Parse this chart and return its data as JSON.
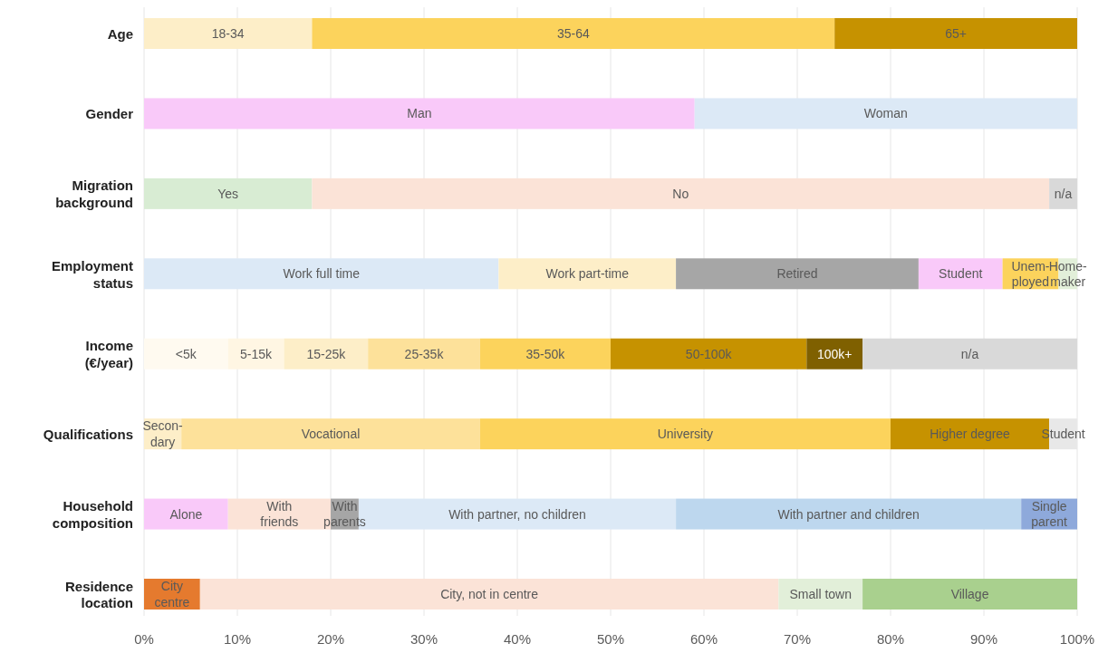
{
  "chart_data": {
    "type": "bar",
    "orientation": "horizontal",
    "stacked": true,
    "categories": [
      "Age",
      "Gender",
      "Migration\nbackground",
      "Employment\nstatus",
      "Income\n(€/year)",
      "Qualifications",
      "Household\ncomposition",
      "Residence\nlocation"
    ],
    "xlim": [
      0,
      100
    ],
    "xticks": [
      {
        "value": 0,
        "label": "0%"
      },
      {
        "value": 10,
        "label": "10%"
      },
      {
        "value": 20,
        "label": "20%"
      },
      {
        "value": 30,
        "label": "30%"
      },
      {
        "value": 40,
        "label": "40%"
      },
      {
        "value": 50,
        "label": "50%"
      },
      {
        "value": 60,
        "label": "60%"
      },
      {
        "value": 70,
        "label": "70%"
      },
      {
        "value": 80,
        "label": "80%"
      },
      {
        "value": 90,
        "label": "90%"
      },
      {
        "value": 100,
        "label": "100%"
      }
    ],
    "grid": "x",
    "series": [
      {
        "name": "18-34",
        "color": "#fdeec8",
        "values": [
          18,
          null,
          null,
          null,
          null,
          null,
          null,
          null
        ]
      },
      {
        "name": "35-64",
        "color": "#fcd35c",
        "values": [
          56,
          null,
          null,
          null,
          null,
          null,
          null,
          null
        ]
      },
      {
        "name": "65+",
        "color": "#c69200",
        "values": [
          26,
          null,
          null,
          null,
          null,
          null,
          null,
          null
        ]
      },
      {
        "name": "Man",
        "color": "#f9c9f9",
        "values": [
          null,
          59,
          null,
          null,
          null,
          null,
          null,
          null
        ]
      },
      {
        "name": "Woman",
        "color": "#dce9f6",
        "values": [
          null,
          41,
          null,
          null,
          null,
          null,
          null,
          null
        ]
      },
      {
        "name": "Yes",
        "color": "#d8ecd3",
        "values": [
          null,
          null,
          18,
          null,
          null,
          null,
          null,
          null
        ]
      },
      {
        "name": "No",
        "color": "#fbe3d7",
        "values": [
          null,
          null,
          79,
          null,
          null,
          null,
          null,
          null
        ]
      },
      {
        "name": "n/a",
        "color": "#d9d9d9",
        "values": [
          null,
          null,
          3,
          null,
          null,
          null,
          null,
          null
        ]
      },
      {
        "name": "Work full time",
        "color": "#dce9f6",
        "values": [
          null,
          null,
          null,
          38,
          null,
          null,
          null,
          null
        ]
      },
      {
        "name": "Work part-time",
        "color": "#fdeec8",
        "values": [
          null,
          null,
          null,
          19,
          null,
          null,
          null,
          null
        ]
      },
      {
        "name": "Retired",
        "color": "#a6a6a6",
        "values": [
          null,
          null,
          null,
          26,
          null,
          null,
          null,
          null
        ]
      },
      {
        "name": "Student",
        "color": "#f9c9f9",
        "values": [
          null,
          null,
          null,
          9,
          null,
          null,
          null,
          null
        ]
      },
      {
        "name": "Unem-\nployed",
        "color": "#fcd35c",
        "values": [
          null,
          null,
          null,
          6,
          null,
          null,
          null,
          null
        ]
      },
      {
        "name": "Home-\nmaker",
        "color": "#e2efd9",
        "values": [
          null,
          null,
          null,
          2,
          null,
          null,
          null,
          null
        ]
      },
      {
        "name": "<5k",
        "color": "#fffaf0",
        "values": [
          null,
          null,
          null,
          null,
          9,
          null,
          null,
          null
        ]
      },
      {
        "name": "5-15k",
        "color": "#fff6e3",
        "values": [
          null,
          null,
          null,
          null,
          6,
          null,
          null,
          null
        ]
      },
      {
        "name": "15-25k",
        "color": "#fdeec8",
        "values": [
          null,
          null,
          null,
          null,
          9,
          null,
          null,
          null
        ]
      },
      {
        "name": "25-35k",
        "color": "#fde19a",
        "values": [
          null,
          null,
          null,
          null,
          12,
          null,
          null,
          null
        ]
      },
      {
        "name": "35-50k",
        "color": "#fcd35c",
        "values": [
          null,
          null,
          null,
          null,
          14,
          null,
          null,
          null
        ]
      },
      {
        "name": "50-100k",
        "color": "#c69200",
        "values": [
          null,
          null,
          null,
          null,
          21,
          null,
          null,
          null
        ]
      },
      {
        "name": "100k+",
        "color": "#7f6000",
        "values": [
          null,
          null,
          null,
          null,
          6,
          null,
          null,
          null
        ]
      },
      {
        "name": "n/a",
        "color": "#d9d9d9",
        "values": [
          null,
          null,
          null,
          null,
          23,
          null,
          null,
          null
        ]
      },
      {
        "name": "Secon-\ndary",
        "color": "#fdeec8",
        "values": [
          null,
          null,
          null,
          null,
          null,
          4,
          null,
          null
        ]
      },
      {
        "name": "Vocational",
        "color": "#fde19a",
        "values": [
          null,
          null,
          null,
          null,
          null,
          32,
          null,
          null
        ]
      },
      {
        "name": "University",
        "color": "#fcd35c",
        "values": [
          null,
          null,
          null,
          null,
          null,
          44,
          null,
          null
        ]
      },
      {
        "name": "Higher degree",
        "color": "#c69200",
        "values": [
          null,
          null,
          null,
          null,
          null,
          17,
          null,
          null
        ]
      },
      {
        "name": "Student",
        "color": "#e8e8e8",
        "values": [
          null,
          null,
          null,
          null,
          null,
          3,
          null,
          null
        ]
      },
      {
        "name": "Alone",
        "color": "#f9c9f9",
        "values": [
          null,
          null,
          null,
          null,
          null,
          null,
          9,
          null
        ]
      },
      {
        "name": "With\nfriends",
        "color": "#fbe3d7",
        "values": [
          null,
          null,
          null,
          null,
          null,
          null,
          11,
          null
        ]
      },
      {
        "name": "With\nparents",
        "color": "#a6a6a6",
        "values": [
          null,
          null,
          null,
          null,
          null,
          null,
          3,
          null
        ]
      },
      {
        "name": "With partner, no children",
        "color": "#dce9f6",
        "values": [
          null,
          null,
          null,
          null,
          null,
          null,
          34,
          null
        ]
      },
      {
        "name": "With partner and children",
        "color": "#bdd7ee",
        "values": [
          null,
          null,
          null,
          null,
          null,
          null,
          37,
          null
        ]
      },
      {
        "name": "Single\nparent",
        "color": "#8ea9db",
        "values": [
          null,
          null,
          null,
          null,
          null,
          null,
          6,
          null
        ]
      },
      {
        "name": "City\ncentre",
        "color": "#e57a2e",
        "values": [
          null,
          null,
          null,
          null,
          null,
          null,
          null,
          6
        ]
      },
      {
        "name": "City, not in centre",
        "color": "#fbe3d7",
        "values": [
          null,
          null,
          null,
          null,
          null,
          null,
          null,
          62
        ]
      },
      {
        "name": "Small town",
        "color": "#e2efd9",
        "values": [
          null,
          null,
          null,
          null,
          null,
          null,
          null,
          9
        ]
      },
      {
        "name": "Village",
        "color": "#a9d08e",
        "values": [
          null,
          null,
          null,
          null,
          null,
          null,
          null,
          23
        ]
      }
    ]
  }
}
